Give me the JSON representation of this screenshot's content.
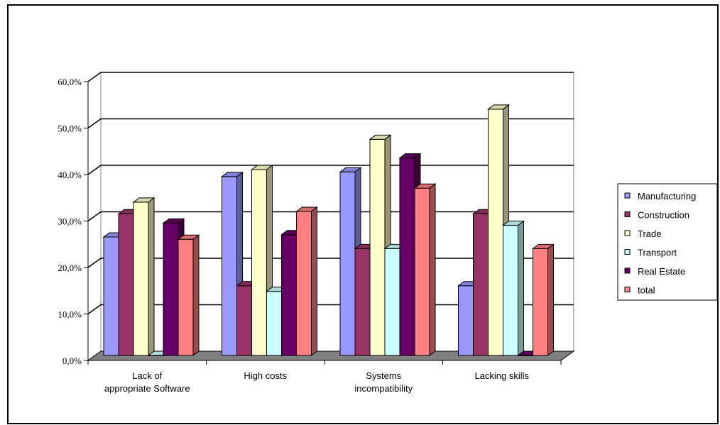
{
  "chart_data": {
    "type": "bar",
    "title": "",
    "xlabel": "",
    "ylabel": "",
    "categories": [
      [
        "Lack of",
        "appropriate Software"
      ],
      [
        "High costs"
      ],
      [
        "Systems",
        "incompatibility"
      ],
      [
        "Lacking skills"
      ]
    ],
    "ylim": [
      0,
      60
    ],
    "yticks": [
      "0,0%",
      "10,0%",
      "20,0%",
      "30,0%",
      "40,0%",
      "50,0%",
      "60,0%"
    ],
    "grid": true,
    "legend_position": "right",
    "series": [
      {
        "name": "Manufacturing",
        "color": "#9999ff",
        "values": [
          25.5,
          38.5,
          39.5,
          15.0
        ]
      },
      {
        "name": "Construction",
        "color": "#993366",
        "values": [
          30.5,
          15.0,
          23.0,
          30.5
        ]
      },
      {
        "name": "Trade",
        "color": "#ffffcc",
        "values": [
          33.0,
          40.0,
          46.5,
          53.0
        ]
      },
      {
        "name": "Transport",
        "color": "#ccffff",
        "values": [
          0.0,
          13.8,
          23.0,
          28.0
        ]
      },
      {
        "name": "Real Estate",
        "color": "#660066",
        "values": [
          28.5,
          26.0,
          42.5,
          0.0
        ]
      },
      {
        "name": "total",
        "color": "#ff8080",
        "values": [
          25.0,
          31.0,
          36.0,
          23.0
        ]
      }
    ]
  }
}
